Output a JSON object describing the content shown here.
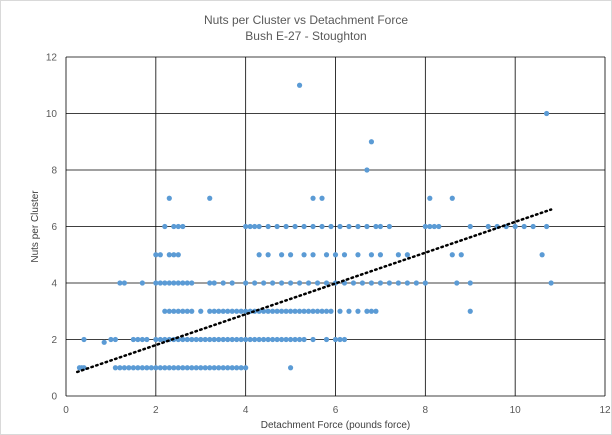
{
  "chart_data": {
    "type": "scatter",
    "title": "Nuts per Cluster vs Detachment Force",
    "subtitle": "Bush E-27 - Stoughton",
    "xlabel": "Detachment Force (pounds force)",
    "ylabel": "Nuts per Cluster",
    "xlim": [
      0,
      12
    ],
    "ylim": [
      0,
      12
    ],
    "xticks": [
      "0",
      "2",
      "4",
      "6",
      "8",
      "10",
      "12"
    ],
    "yticks": [
      "0",
      "2",
      "4",
      "6",
      "8",
      "10",
      "12"
    ],
    "grid": "major gridlines",
    "legend": "none",
    "trendline": {
      "style": "dotted",
      "x": [
        0.25,
        10.8
      ],
      "y": [
        0.85,
        6.6
      ]
    },
    "colors": {
      "points": "#5b9bd5",
      "grid": "#000000",
      "trend": "#000000"
    },
    "series": [
      {
        "x": [
          0.3,
          0.35,
          0.4,
          1.1,
          1.2,
          1.3,
          1.4,
          1.5,
          1.6,
          1.7,
          1.8,
          1.9,
          2.0,
          2.1,
          2.2,
          2.3,
          2.4,
          2.5,
          2.6,
          2.7,
          2.8,
          2.9,
          3.0,
          3.1,
          3.2,
          3.3,
          3.4,
          3.5,
          3.6,
          3.7,
          3.8,
          3.9,
          4.0,
          5.0,
          0.4,
          1.0,
          1.1,
          1.5,
          1.6,
          1.7,
          1.8,
          2.0,
          2.1,
          2.2,
          2.3,
          2.4,
          2.5,
          2.6,
          2.7,
          2.8,
          2.9,
          3.0,
          3.1,
          3.2,
          3.3,
          3.4,
          3.5,
          3.6,
          3.7,
          3.8,
          3.9,
          4.0,
          4.1,
          4.2,
          4.3,
          4.4,
          4.5,
          4.6,
          4.7,
          4.8,
          4.9,
          5.0,
          5.1,
          5.2,
          5.3,
          5.5,
          5.8,
          6.0,
          6.1,
          6.2,
          2.2,
          2.3,
          2.4,
          2.5,
          2.6,
          2.7,
          2.8,
          3.0,
          3.2,
          3.3,
          3.4,
          3.5,
          3.6,
          3.7,
          3.8,
          3.9,
          4.0,
          4.1,
          4.2,
          4.3,
          4.4,
          4.5,
          4.6,
          4.7,
          4.8,
          4.9,
          5.0,
          5.1,
          5.2,
          5.3,
          5.4,
          5.5,
          5.6,
          5.7,
          5.8,
          5.9,
          6.1,
          6.3,
          6.5,
          6.7,
          6.8,
          6.9,
          1.2,
          1.3,
          1.7,
          2.0,
          2.1,
          2.2,
          2.3,
          2.4,
          2.5,
          2.6,
          2.7,
          2.8,
          3.2,
          3.3,
          3.5,
          3.7,
          4.0,
          4.2,
          4.4,
          4.6,
          4.8,
          5.0,
          5.2,
          5.4,
          5.6,
          5.8,
          6.0,
          6.2,
          6.4,
          6.6,
          6.8,
          7.0,
          7.2,
          7.4,
          7.6,
          7.8,
          8.0,
          8.7,
          9.0,
          10.6,
          10.8,
          2.0,
          2.1,
          2.3,
          2.4,
          2.5,
          4.3,
          4.5,
          4.8,
          5.0,
          5.3,
          5.5,
          5.8,
          6.0,
          6.2,
          6.5,
          6.8,
          7.0,
          7.4,
          7.6,
          8.6,
          8.8,
          2.2,
          2.4,
          2.5,
          2.6,
          4.0,
          4.1,
          4.2,
          4.3,
          4.5,
          4.7,
          4.9,
          5.1,
          5.3,
          5.5,
          5.7,
          5.9,
          6.1,
          6.3,
          6.5,
          6.7,
          6.9,
          7.0,
          7.2,
          8.0,
          8.1,
          8.2,
          8.3,
          9.0,
          9.4,
          9.6,
          9.8,
          10.0,
          10.2,
          10.4,
          10.7,
          2.3,
          3.2,
          5.5,
          5.7,
          8.1,
          8.6,
          6.7,
          6.8,
          9.0,
          5.2,
          10.7,
          0.85
        ],
        "y": [
          1,
          1,
          1,
          1,
          1,
          1,
          1,
          1,
          1,
          1,
          1,
          1,
          1,
          1,
          1,
          1,
          1,
          1,
          1,
          1,
          1,
          1,
          1,
          1,
          1,
          1,
          1,
          1,
          1,
          1,
          1,
          1,
          1,
          1,
          2,
          2,
          2,
          2,
          2,
          2,
          2,
          2,
          2,
          2,
          2,
          2,
          2,
          2,
          2,
          2,
          2,
          2,
          2,
          2,
          2,
          2,
          2,
          2,
          2,
          2,
          2,
          2,
          2,
          2,
          2,
          2,
          2,
          2,
          2,
          2,
          2,
          2,
          2,
          2,
          2,
          2,
          2,
          2,
          2,
          2,
          3,
          3,
          3,
          3,
          3,
          3,
          3,
          3,
          3,
          3,
          3,
          3,
          3,
          3,
          3,
          3,
          3,
          3,
          3,
          3,
          3,
          3,
          3,
          3,
          3,
          3,
          3,
          3,
          3,
          3,
          3,
          3,
          3,
          3,
          3,
          3,
          3,
          3,
          3,
          3,
          3,
          3,
          4,
          4,
          4,
          4,
          4,
          4,
          4,
          4,
          4,
          4,
          4,
          4,
          4,
          4,
          4,
          4,
          4,
          4,
          4,
          4,
          4,
          4,
          4,
          4,
          4,
          4,
          4,
          4,
          4,
          4,
          4,
          4,
          4,
          4,
          4,
          4,
          4,
          4,
          4,
          5,
          4,
          5,
          5,
          5,
          5,
          5,
          5,
          5,
          5,
          5,
          5,
          5,
          5,
          5,
          5,
          5,
          5,
          5,
          5,
          5,
          5,
          5,
          6,
          6,
          6,
          6,
          6,
          6,
          6,
          6,
          6,
          6,
          6,
          6,
          6,
          6,
          6,
          6,
          6,
          6,
          6,
          6,
          6,
          6,
          6,
          6,
          6,
          6,
          6,
          6,
          6,
          6,
          6,
          6,
          6,
          6,
          6,
          7,
          7,
          7,
          7,
          7,
          7,
          8,
          9,
          3,
          11,
          10,
          1.9
        ]
      }
    ]
  }
}
